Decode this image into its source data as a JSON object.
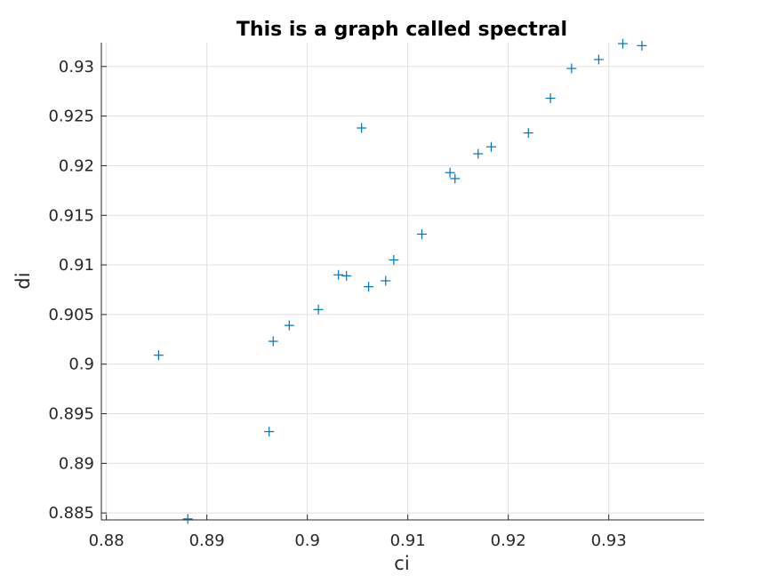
{
  "chart_data": {
    "type": "scatter",
    "title": "This is a graph called spectral",
    "xlabel": "ci",
    "ylabel": "di",
    "xlim": [
      0.8795,
      0.9395
    ],
    "ylim": [
      0.8843,
      0.9324
    ],
    "xticks": [
      {
        "value": 0.88,
        "label": "0.88"
      },
      {
        "value": 0.89,
        "label": "0.89"
      },
      {
        "value": 0.9,
        "label": "0.9"
      },
      {
        "value": 0.91,
        "label": "0.91"
      },
      {
        "value": 0.92,
        "label": "0.92"
      },
      {
        "value": 0.93,
        "label": "0.93"
      }
    ],
    "yticks": [
      {
        "value": 0.885,
        "label": "0.885"
      },
      {
        "value": 0.89,
        "label": "0.89"
      },
      {
        "value": 0.895,
        "label": "0.895"
      },
      {
        "value": 0.9,
        "label": "0.9"
      },
      {
        "value": 0.905,
        "label": "0.905"
      },
      {
        "value": 0.91,
        "label": "0.91"
      },
      {
        "value": 0.915,
        "label": "0.915"
      },
      {
        "value": 0.92,
        "label": "0.92"
      },
      {
        "value": 0.925,
        "label": "0.925"
      },
      {
        "value": 0.93,
        "label": "0.93"
      }
    ],
    "grid": true,
    "marker": "plus",
    "color": "#0072bd",
    "points": [
      {
        "x": 0.8852,
        "y": 0.9009
      },
      {
        "x": 0.8881,
        "y": 0.8844
      },
      {
        "x": 0.8962,
        "y": 0.8932
      },
      {
        "x": 0.8966,
        "y": 0.9023
      },
      {
        "x": 0.8982,
        "y": 0.9039
      },
      {
        "x": 0.9011,
        "y": 0.9055
      },
      {
        "x": 0.9031,
        "y": 0.909
      },
      {
        "x": 0.9039,
        "y": 0.9089
      },
      {
        "x": 0.9054,
        "y": 0.9238
      },
      {
        "x": 0.9061,
        "y": 0.9078
      },
      {
        "x": 0.9078,
        "y": 0.9084
      },
      {
        "x": 0.9086,
        "y": 0.9105
      },
      {
        "x": 0.9114,
        "y": 0.9131
      },
      {
        "x": 0.9142,
        "y": 0.9193
      },
      {
        "x": 0.9147,
        "y": 0.9187
      },
      {
        "x": 0.917,
        "y": 0.9212
      },
      {
        "x": 0.9183,
        "y": 0.9219
      },
      {
        "x": 0.922,
        "y": 0.9233
      },
      {
        "x": 0.9242,
        "y": 0.9268
      },
      {
        "x": 0.9263,
        "y": 0.9298
      },
      {
        "x": 0.929,
        "y": 0.9307
      },
      {
        "x": 0.9314,
        "y": 0.9323
      },
      {
        "x": 0.9333,
        "y": 0.9321
      }
    ]
  }
}
